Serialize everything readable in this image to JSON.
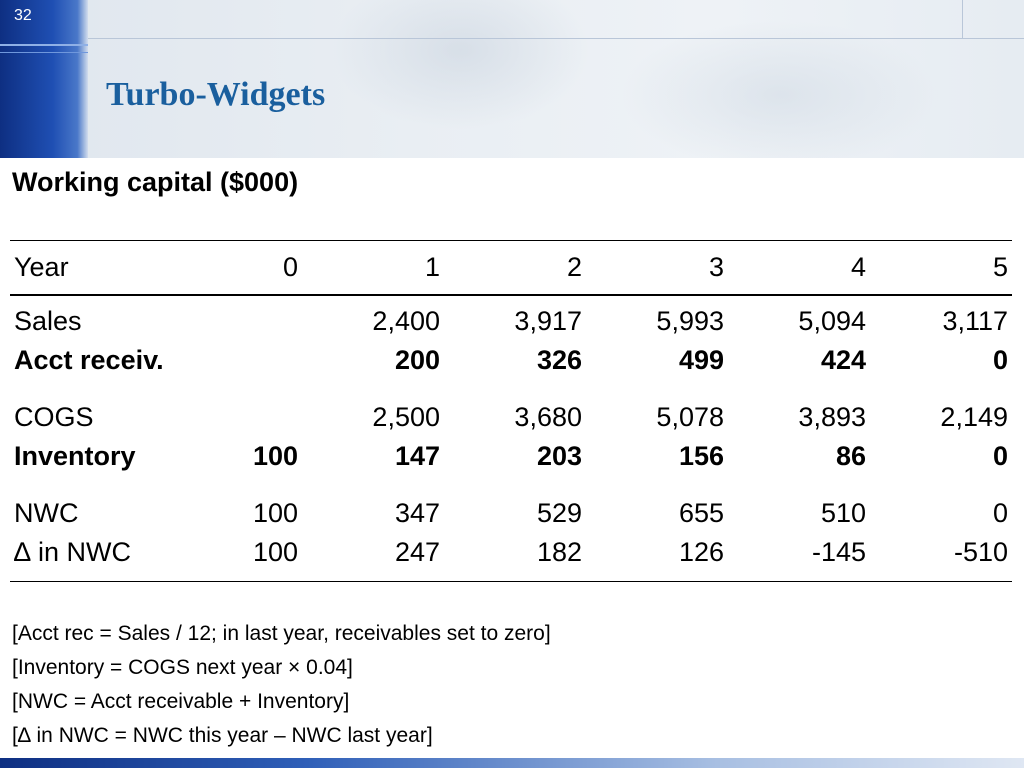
{
  "slide": {
    "number": "32",
    "title": "Turbo-Widgets"
  },
  "content": {
    "heading": "Working capital ($000)"
  },
  "table": {
    "header": {
      "label": "Year",
      "cells": [
        "0",
        "1",
        "2",
        "3",
        "4",
        "5"
      ]
    },
    "rows": [
      {
        "label": "Sales",
        "bold": false,
        "cells": [
          "",
          "2,400",
          "3,917",
          "5,993",
          "5,094",
          "3,117"
        ]
      },
      {
        "label": "Acct receiv.",
        "bold": true,
        "cells": [
          "",
          "200",
          "326",
          "499",
          "424",
          "0"
        ]
      },
      {
        "label": "COGS",
        "bold": false,
        "cells": [
          "",
          "2,500",
          "3,680",
          "5,078",
          "3,893",
          "2,149"
        ]
      },
      {
        "label": "Inventory",
        "bold": true,
        "cells": [
          "100",
          "147",
          "203",
          "156",
          "86",
          "0"
        ]
      },
      {
        "label": "NWC",
        "bold": false,
        "cells": [
          "100",
          "347",
          "529",
          "655",
          "510",
          "0"
        ]
      },
      {
        "label": "∆ in NWC",
        "bold": false,
        "cells": [
          "100",
          "247",
          "182",
          "126",
          "-145",
          "-510"
        ]
      }
    ]
  },
  "notes": [
    "[Acct rec = Sales / 12; in last year, receivables set to zero]",
    "[Inventory = COGS next year × 0.04]",
    "[NWC = Acct receivable + Inventory]",
    "[∆ in NWC = NWC this year – NWC last year]"
  ],
  "colors": {
    "title": "#1a5f9e",
    "banner_strip": "#1f4fb3"
  }
}
